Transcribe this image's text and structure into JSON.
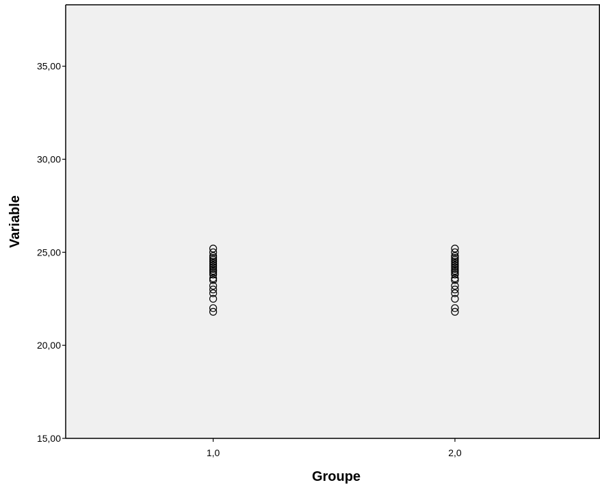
{
  "chart_data": {
    "type": "scatter",
    "title": "",
    "xlabel": "Groupe",
    "ylabel": "Variable",
    "x_tick_labels": [
      "1,0",
      "2,0"
    ],
    "x_tick_values": [
      1.0,
      2.0
    ],
    "xlim": [
      0.39,
      2.6
    ],
    "y_tick_labels": [
      "15,00",
      "20,00",
      "25,00",
      "30,00",
      "35,00"
    ],
    "y_tick_values": [
      15,
      20,
      25,
      30,
      35
    ],
    "ylim": [
      15,
      38.3
    ],
    "grid": false,
    "legend": "none",
    "background_color": "#f0f0f0",
    "marker": "open-circle",
    "series": [
      {
        "x": [
          1,
          1,
          1,
          1,
          1,
          1,
          1,
          1,
          1,
          1,
          1,
          1,
          1,
          1,
          1,
          1,
          1,
          1,
          1,
          1,
          1,
          1
        ],
        "y": [
          21.8,
          22.0,
          22.5,
          22.8,
          23.0,
          23.2,
          23.5,
          23.6,
          23.8,
          23.9,
          24.0,
          24.0,
          24.1,
          24.2,
          24.3,
          24.4,
          24.5,
          24.6,
          24.7,
          24.8,
          25.0,
          25.2
        ]
      },
      {
        "x": [
          2,
          2,
          2,
          2,
          2,
          2,
          2,
          2,
          2,
          2,
          2,
          2,
          2,
          2,
          2,
          2,
          2,
          2,
          2,
          2,
          2,
          2
        ],
        "y": [
          21.8,
          22.0,
          22.5,
          22.8,
          23.0,
          23.2,
          23.5,
          23.6,
          23.8,
          23.9,
          24.0,
          24.0,
          24.1,
          24.2,
          24.3,
          24.4,
          24.5,
          24.6,
          24.7,
          24.8,
          25.0,
          25.2
        ]
      }
    ]
  }
}
